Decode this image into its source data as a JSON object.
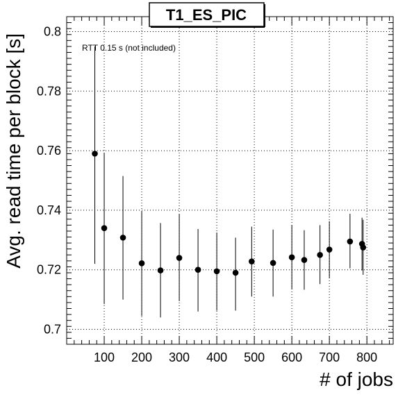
{
  "chart_data": {
    "type": "scatter",
    "title": "T1_ES_PIC",
    "xlabel": "# of jobs",
    "ylabel": "Avg. read time per block [s]",
    "annotation": "RTT 0.15 s (not included)",
    "xlim": [
      0,
      870
    ],
    "ylim": [
      0.695,
      0.805
    ],
    "xticks": [
      100,
      200,
      300,
      400,
      500,
      600,
      700,
      800
    ],
    "yticks": [
      0.7,
      0.72,
      0.74,
      0.76,
      0.78,
      0.8
    ],
    "ytick_labels": [
      "0.7",
      "0.72",
      "0.74",
      "0.76",
      "0.78",
      "0.8"
    ],
    "grid": true,
    "grid_style": "dotted",
    "marker_color": "#000000",
    "series": [
      {
        "x": [
          75,
          100,
          150,
          200,
          250,
          300,
          350,
          400,
          450,
          493,
          550,
          600,
          633,
          675,
          700,
          755,
          787,
          790
        ],
        "y": [
          0.759,
          0.734,
          0.7308,
          0.7222,
          0.7198,
          0.724,
          0.72,
          0.7195,
          0.719,
          0.7228,
          0.7223,
          0.7242,
          0.7233,
          0.725,
          0.7268,
          0.7295,
          0.7287,
          0.7275
        ],
        "ylow": [
          0.722,
          0.7085,
          0.71,
          0.7045,
          0.704,
          0.7095,
          0.706,
          0.7063,
          0.7063,
          0.711,
          0.711,
          0.7135,
          0.7133,
          0.7152,
          0.7172,
          0.7205,
          0.7198,
          0.7183
        ],
        "yhigh": [
          0.795,
          0.7593,
          0.7515,
          0.7397,
          0.7357,
          0.7387,
          0.7337,
          0.7325,
          0.7308,
          0.7345,
          0.7335,
          0.735,
          0.7333,
          0.735,
          0.7363,
          0.7388,
          0.7375,
          0.7368
        ]
      }
    ]
  }
}
